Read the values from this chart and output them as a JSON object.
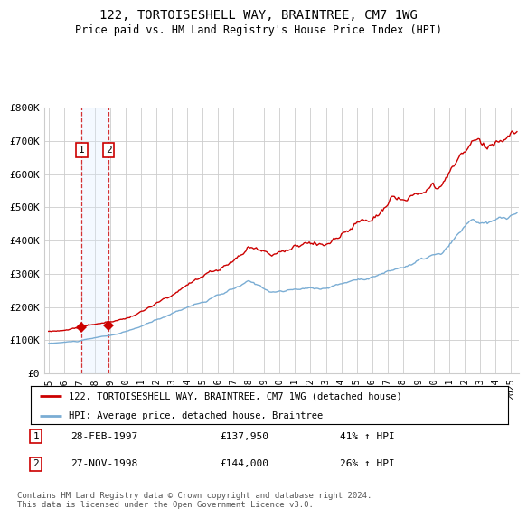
{
  "title": "122, TORTOISESHELL WAY, BRAINTREE, CM7 1WG",
  "subtitle": "Price paid vs. HM Land Registry's House Price Index (HPI)",
  "legend_line1": "122, TORTOISESHELL WAY, BRAINTREE, CM7 1WG (detached house)",
  "legend_line2": "HPI: Average price, detached house, Braintree",
  "footer": "Contains HM Land Registry data © Crown copyright and database right 2024.\nThis data is licensed under the Open Government Licence v3.0.",
  "sale1_date": "28-FEB-1997",
  "sale1_price": "£137,950",
  "sale1_hpi": "41% ↑ HPI",
  "sale1_year": 1997.15,
  "sale1_value": 137950,
  "sale2_date": "27-NOV-1998",
  "sale2_price": "£144,000",
  "sale2_hpi": "26% ↑ HPI",
  "sale2_year": 1998.9,
  "sale2_value": 144000,
  "red_line_color": "#cc0000",
  "blue_line_color": "#7aadd4",
  "marker_color": "#cc0000",
  "bg_color": "#ffffff",
  "grid_color": "#cccccc",
  "shade_color": "#ddeeff",
  "dashed_line_color": "#cc0000",
  "ylim": [
    0,
    800000
  ],
  "yticks": [
    0,
    100000,
    200000,
    300000,
    400000,
    500000,
    600000,
    700000,
    800000
  ],
  "ytick_labels": [
    "£0",
    "£100K",
    "£200K",
    "£300K",
    "£400K",
    "£500K",
    "£600K",
    "£700K",
    "£800K"
  ],
  "xlim_start": 1994.7,
  "xlim_end": 2025.5
}
